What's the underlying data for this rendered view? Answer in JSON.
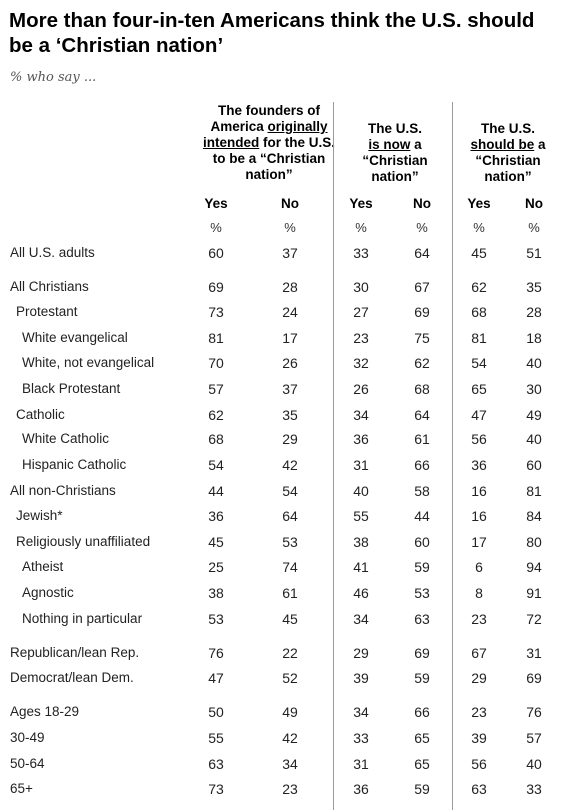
{
  "title": "More than four-in-ten Americans think the U.S. should be a ‘Christian nation’",
  "subtitle": "% who say ...",
  "groups": [
    {
      "line1": "The founders of",
      "line2a": "America ",
      "line2u": "originally",
      "line3u": "intended",
      "line3b": " for the U.S.",
      "line4": "to be a “Christian",
      "line5": "nation”"
    },
    {
      "line1": "The U.S.",
      "line2u": "is now",
      "line2b": " a",
      "line3": "“Christian",
      "line4": "nation”"
    },
    {
      "line1": "The U.S.",
      "line2u": "should be",
      "line2b": " a",
      "line3": "“Christian",
      "line4": "nation”"
    }
  ],
  "column_labels": [
    "Yes",
    "No",
    "Yes",
    "No",
    "Yes",
    "No"
  ],
  "unit_label": "%",
  "chart_data": {
    "type": "table",
    "columns": [
      "The founders of America originally intended for the U.S. to be a “Christian nation” — Yes",
      "The founders of America originally intended for the U.S. to be a “Christian nation” — No",
      "The U.S. is now a “Christian nation” — Yes",
      "The U.S. is now a “Christian nation” — No",
      "The U.S. should be a “Christian nation” — Yes",
      "The U.S. should be a “Christian nation” — No"
    ],
    "rows": [
      {
        "label": "All U.S. adults",
        "values": [
          60,
          37,
          33,
          64,
          45,
          51
        ]
      },
      {
        "label": "All Christians",
        "values": [
          69,
          28,
          30,
          67,
          62,
          35
        ]
      },
      {
        "label": "Protestant",
        "values": [
          73,
          24,
          27,
          69,
          68,
          28
        ]
      },
      {
        "label": "White evangelical",
        "values": [
          81,
          17,
          23,
          75,
          81,
          18
        ]
      },
      {
        "label": "White, not evangelical",
        "values": [
          70,
          26,
          32,
          62,
          54,
          40
        ]
      },
      {
        "label": "Black Protestant",
        "values": [
          57,
          37,
          26,
          68,
          65,
          30
        ]
      },
      {
        "label": "Catholic",
        "values": [
          62,
          35,
          34,
          64,
          47,
          49
        ]
      },
      {
        "label": "White Catholic",
        "values": [
          68,
          29,
          36,
          61,
          56,
          40
        ]
      },
      {
        "label": "Hispanic Catholic",
        "values": [
          54,
          42,
          31,
          66,
          36,
          60
        ]
      },
      {
        "label": "All non-Christians",
        "values": [
          44,
          54,
          40,
          58,
          16,
          81
        ]
      },
      {
        "label": "Jewish*",
        "values": [
          36,
          64,
          55,
          44,
          16,
          84
        ]
      },
      {
        "label": "Religiously unaffiliated",
        "values": [
          45,
          53,
          38,
          60,
          17,
          80
        ]
      },
      {
        "label": "Atheist",
        "values": [
          25,
          74,
          41,
          59,
          6,
          94
        ]
      },
      {
        "label": "Agnostic",
        "values": [
          38,
          61,
          46,
          53,
          8,
          91
        ]
      },
      {
        "label": "Nothing in particular",
        "values": [
          53,
          45,
          34,
          63,
          23,
          72
        ]
      },
      {
        "label": "Republican/lean Rep.",
        "values": [
          76,
          22,
          29,
          69,
          67,
          31
        ]
      },
      {
        "label": "Democrat/lean Dem.",
        "values": [
          47,
          52,
          39,
          59,
          29,
          69
        ]
      },
      {
        "label": "Ages 18-29",
        "values": [
          50,
          49,
          34,
          66,
          23,
          76
        ]
      },
      {
        "label": "30-49",
        "values": [
          55,
          42,
          33,
          65,
          39,
          57
        ]
      },
      {
        "label": "50-64",
        "values": [
          63,
          34,
          31,
          65,
          56,
          40
        ]
      },
      {
        "label": "65+",
        "values": [
          73,
          23,
          36,
          59,
          63,
          33
        ]
      }
    ]
  }
}
